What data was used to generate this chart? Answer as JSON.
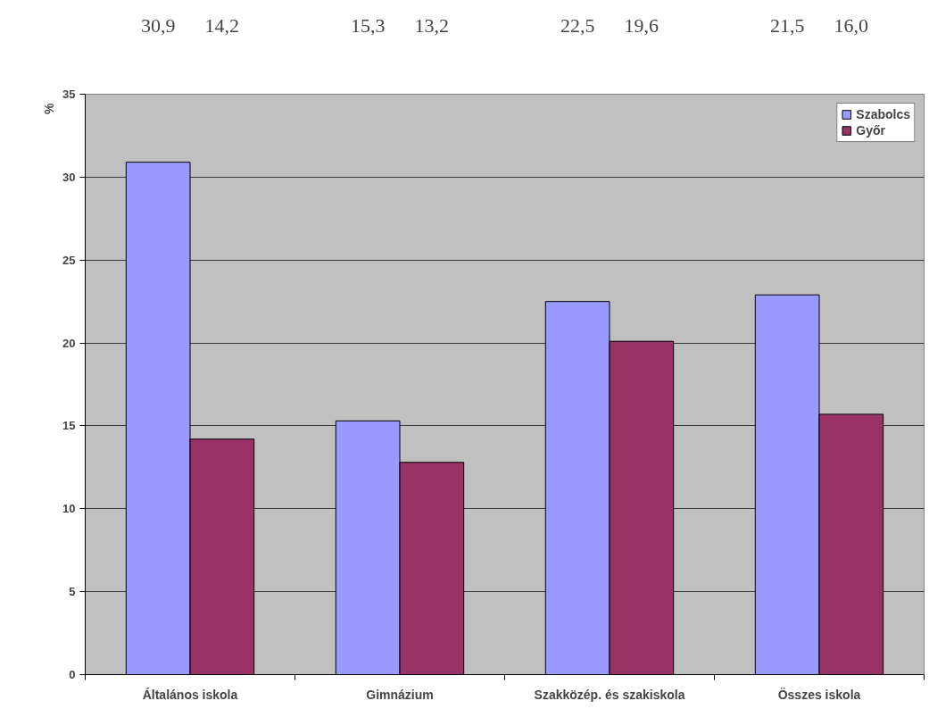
{
  "chart_data": {
    "type": "bar",
    "ylabel": "%",
    "categories": [
      "Általános iskola",
      "Gimnázium",
      "Szakközép. és szakiskola",
      "Összes iskola"
    ],
    "series": [
      {
        "name": "Szabolcs",
        "color": "#9999ff",
        "values": [
          30.9,
          15.3,
          22.5,
          22.9
        ]
      },
      {
        "name": "Győr",
        "color": "#993366",
        "values": [
          14.2,
          12.8,
          20.1,
          15.7
        ]
      }
    ],
    "annotations": [
      "30,9",
      "14,2",
      "15,3",
      "13,2",
      "22,5",
      "19,6",
      "21,5",
      "16,0"
    ],
    "ylim": [
      0,
      35
    ],
    "yticks": [
      0,
      5,
      10,
      15,
      20,
      25,
      30,
      35
    ],
    "grid": "y",
    "legend": "top right"
  }
}
